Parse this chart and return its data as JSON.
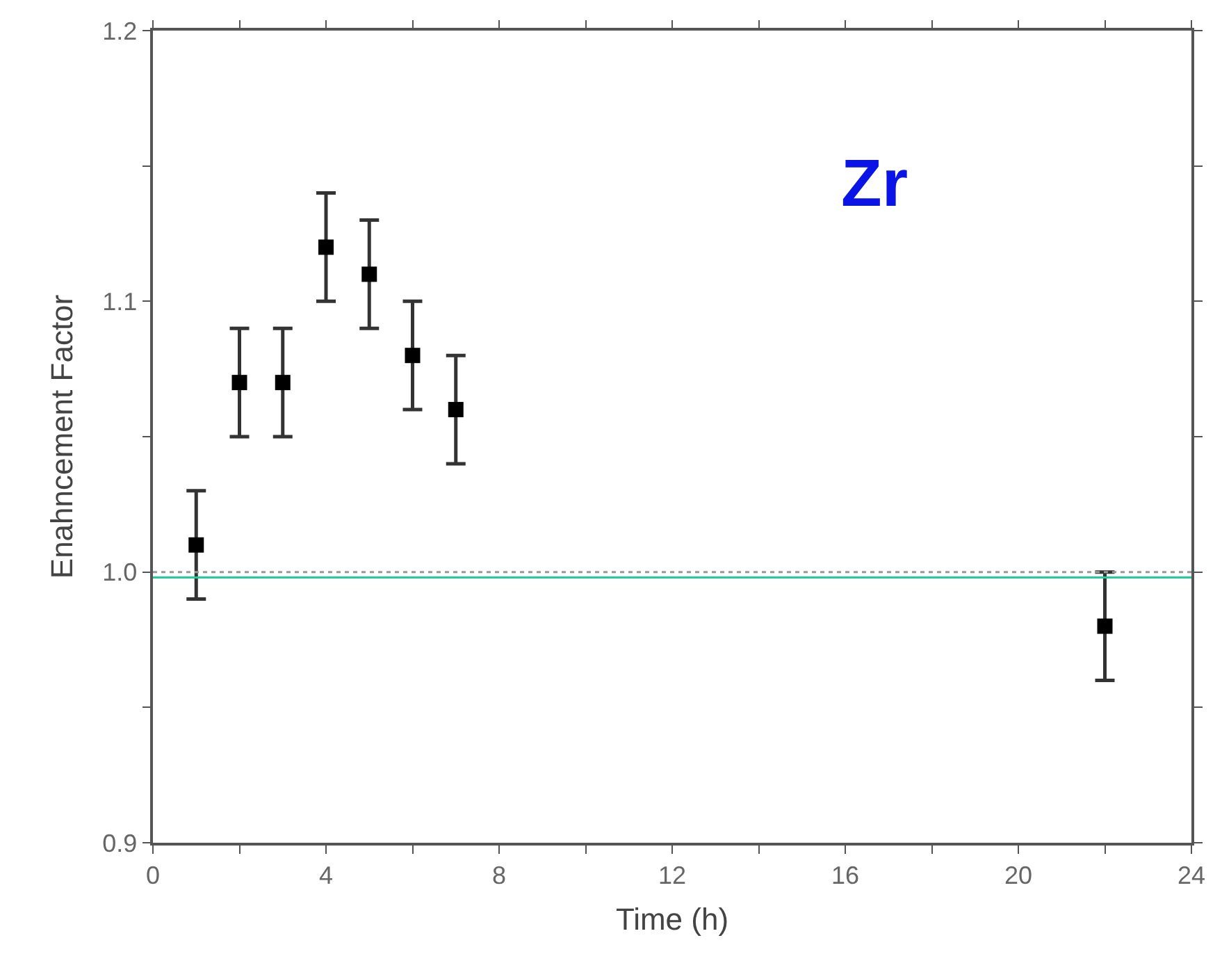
{
  "chart_data": {
    "type": "scatter",
    "xlabel": "Time (h)",
    "ylabel": "Enahncement Factor",
    "x": [
      1,
      2,
      3,
      4,
      5,
      6,
      7,
      22
    ],
    "values": [
      1.01,
      1.07,
      1.07,
      1.12,
      1.11,
      1.08,
      1.06,
      0.98
    ],
    "errors": [
      0.02,
      0.02,
      0.02,
      0.02,
      0.02,
      0.02,
      0.02,
      0.02
    ],
    "color": "#000000",
    "marker": "square",
    "xlim": [
      0,
      24
    ],
    "ylim": [
      0.9,
      1.2
    ],
    "xticks": [
      0,
      {
        "value": 2,
        "label": null
      },
      4,
      {
        "value": 6,
        "label": null
      },
      8,
      {
        "value": 10,
        "label": null
      },
      12,
      {
        "value": 14,
        "label": null
      },
      16,
      {
        "value": 18,
        "label": null
      },
      20,
      {
        "value": 22,
        "label": null
      },
      24
    ],
    "yticks": [
      {
        "value": 0.9,
        "label": "0.9"
      },
      {
        "value": 0.95,
        "label": null
      },
      {
        "value": 1.0,
        "label": "1.0"
      },
      {
        "value": 1.05,
        "label": null
      },
      {
        "value": 1.1,
        "label": "1.1"
      },
      {
        "value": 1.15,
        "label": null
      },
      {
        "value": 1.2,
        "label": "1.2"
      }
    ],
    "ref_lines": [
      {
        "axis": "y",
        "value": 1.0,
        "color": "#999999",
        "line_style": "dotted"
      },
      {
        "axis": "y",
        "value": 0.998,
        "color": "#1fcf9a",
        "line_style": "solid"
      }
    ],
    "annotations": [
      "Zr"
    ]
  }
}
